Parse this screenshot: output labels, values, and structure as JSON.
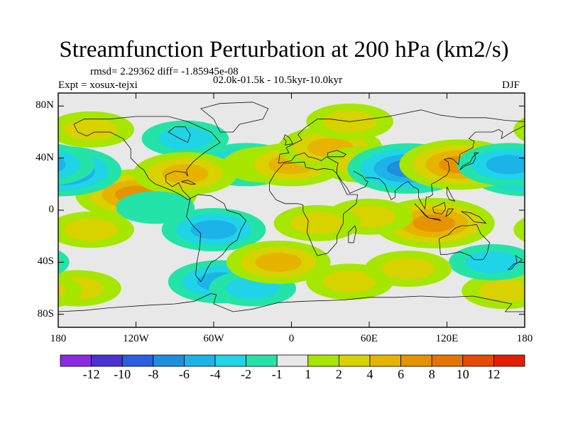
{
  "title": "Streamfunction Perturbation at 200 hPa (km2/s)",
  "stats": "rmsd= 2.29362 diff= -1.85945e-08",
  "experiment": "Expt = xosux-tejxi",
  "period": "02.0k-01.5k - 10.5kyr-10.0kyr",
  "season": "DJF",
  "y_axis_labels": [
    "80N",
    "40N",
    "0",
    "40S",
    "80S"
  ],
  "x_axis_labels": [
    "180",
    "120W",
    "60W",
    "0",
    "60E",
    "120E",
    "180"
  ],
  "colorbar": {
    "labels": [
      "-12",
      "-10",
      "-8",
      "-6",
      "-4",
      "-2",
      "-1",
      "1",
      "2",
      "4",
      "6",
      "8",
      "10",
      "12"
    ],
    "colors": [
      "#8a2be2",
      "#4b32d4",
      "#2a5fe0",
      "#1c8fe0",
      "#1cb4e8",
      "#1fd4e6",
      "#24e3a8",
      "#e8e8e8",
      "#a6e600",
      "#d7d200",
      "#e6b400",
      "#e69300",
      "#e67500",
      "#e64a00",
      "#e61c00"
    ]
  },
  "field_anomalies": [
    {
      "lon": -120,
      "lat": 12,
      "value": 6,
      "region": "eastern tropical Pacific"
    },
    {
      "lon": -155,
      "lat": 62,
      "value": 2,
      "region": "Alaska"
    },
    {
      "lon": -178,
      "lat": 30,
      "value": -6,
      "region": "central North Pacific"
    },
    {
      "lon": -82,
      "lat": 55,
      "value": -2,
      "region": "Hudson Bay"
    },
    {
      "lon": -35,
      "lat": 35,
      "value": -4,
      "region": "central North Atlantic"
    },
    {
      "lon": -20,
      "lat": 35,
      "value": 2,
      "region": "Azores"
    },
    {
      "lon": -82,
      "lat": 28,
      "value": 4,
      "region": "Gulf of Mexico"
    },
    {
      "lon": 0,
      "lat": 35,
      "value": 4,
      "region": "North Africa"
    },
    {
      "lon": 30,
      "lat": 48,
      "value": 4,
      "region": "Eastern Europe"
    },
    {
      "lon": 55,
      "lat": 35,
      "value": 2,
      "region": "Middle East"
    },
    {
      "lon": 90,
      "lat": 32,
      "value": -6,
      "region": "Tibet"
    },
    {
      "lon": 130,
      "lat": 35,
      "value": 6,
      "region": "Japan"
    },
    {
      "lon": 168,
      "lat": 35,
      "value": -4,
      "region": "western North Pacific"
    },
    {
      "lon": 45,
      "lat": 68,
      "value": 2,
      "region": "Arctic Russia"
    },
    {
      "lon": -60,
      "lat": -15,
      "value": -4,
      "region": "Amazon"
    },
    {
      "lon": -155,
      "lat": -15,
      "value": 2,
      "region": "south Pacific"
    },
    {
      "lon": -105,
      "lat": 2,
      "value": -1,
      "region": "equatorial east Pacific"
    },
    {
      "lon": 110,
      "lat": -10,
      "value": 6,
      "region": "Maritime Continent"
    },
    {
      "lon": 60,
      "lat": -5,
      "value": 2,
      "region": "Indian Ocean"
    },
    {
      "lon": 20,
      "lat": -10,
      "value": 2,
      "region": "central Africa"
    },
    {
      "lon": -165,
      "lat": -60,
      "value": 2,
      "region": "Ross Sea"
    },
    {
      "lon": 165,
      "lat": -62,
      "value": 2,
      "region": "southwest Pacific"
    },
    {
      "lon": -55,
      "lat": -55,
      "value": -4,
      "region": "Drake Passage"
    },
    {
      "lon": -30,
      "lat": -60,
      "value": -2,
      "region": "Weddell Sea"
    },
    {
      "lon": 45,
      "lat": -55,
      "value": 2,
      "region": "southern Indian Ocean"
    },
    {
      "lon": 155,
      "lat": -40,
      "value": -2,
      "region": "Tasman Sea"
    },
    {
      "lon": -10,
      "lat": -40,
      "value": 4,
      "region": "south Atlantic"
    },
    {
      "lon": 90,
      "lat": -45,
      "value": 2,
      "region": "south Indian Ocean"
    }
  ]
}
